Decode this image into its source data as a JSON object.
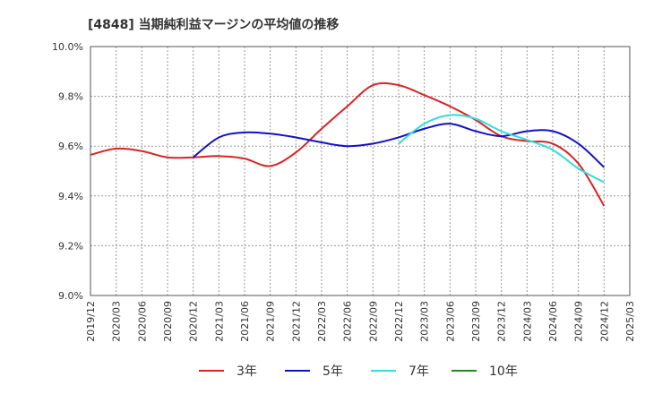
{
  "chart_data": {
    "type": "line",
    "title": "[4848]  当期純利益マージンの平均値の推移",
    "xlabel": "",
    "ylabel": "",
    "ylim": [
      9.0,
      10.0
    ],
    "y_ticks": [
      "9.0%",
      "9.2%",
      "9.4%",
      "9.6%",
      "9.8%",
      "10.0%"
    ],
    "y_tick_values": [
      9.0,
      9.2,
      9.4,
      9.6,
      9.8,
      10.0
    ],
    "x_ticks": [
      "2019/12",
      "2020/03",
      "2020/06",
      "2020/09",
      "2020/12",
      "2021/03",
      "2021/06",
      "2021/09",
      "2021/12",
      "2022/03",
      "2022/06",
      "2022/09",
      "2022/12",
      "2023/03",
      "2023/06",
      "2023/09",
      "2023/12",
      "2024/03",
      "2024/06",
      "2024/09",
      "2024/12",
      "2025/03"
    ],
    "grid": true,
    "legend_position": "bottom",
    "series": [
      {
        "name": "3年",
        "color": "#dd2222",
        "x": [
          "2019/12",
          "2020/03",
          "2020/06",
          "2020/09",
          "2020/12",
          "2021/03",
          "2021/06",
          "2021/09",
          "2021/12",
          "2022/03",
          "2022/06",
          "2022/09",
          "2022/12",
          "2023/03",
          "2023/06",
          "2023/09",
          "2023/12",
          "2024/03",
          "2024/06",
          "2024/09",
          "2024/12"
        ],
        "values": [
          9.565,
          9.59,
          9.58,
          9.555,
          9.555,
          9.56,
          9.55,
          9.52,
          9.575,
          9.67,
          9.76,
          9.845,
          9.845,
          9.805,
          9.76,
          9.705,
          9.64,
          9.62,
          9.61,
          9.53,
          9.36
        ]
      },
      {
        "name": "5年",
        "color": "#1111cc",
        "x": [
          "2020/12",
          "2021/03",
          "2021/06",
          "2021/09",
          "2021/12",
          "2022/03",
          "2022/06",
          "2022/09",
          "2022/12",
          "2023/03",
          "2023/06",
          "2023/09",
          "2023/12",
          "2024/03",
          "2024/06",
          "2024/09",
          "2024/12"
        ],
        "values": [
          9.555,
          9.635,
          9.655,
          9.65,
          9.635,
          9.615,
          9.6,
          9.61,
          9.635,
          9.67,
          9.69,
          9.66,
          9.64,
          9.66,
          9.66,
          9.61,
          9.515
        ]
      },
      {
        "name": "7年",
        "color": "#33dddd",
        "x": [
          "2022/12",
          "2023/03",
          "2023/06",
          "2023/09",
          "2023/12",
          "2024/03",
          "2024/06",
          "2024/09",
          "2024/12"
        ],
        "values": [
          9.61,
          9.69,
          9.725,
          9.71,
          9.66,
          9.625,
          9.585,
          9.51,
          9.455
        ]
      },
      {
        "name": "10年",
        "color": "#228822",
        "x": [],
        "values": []
      }
    ]
  }
}
